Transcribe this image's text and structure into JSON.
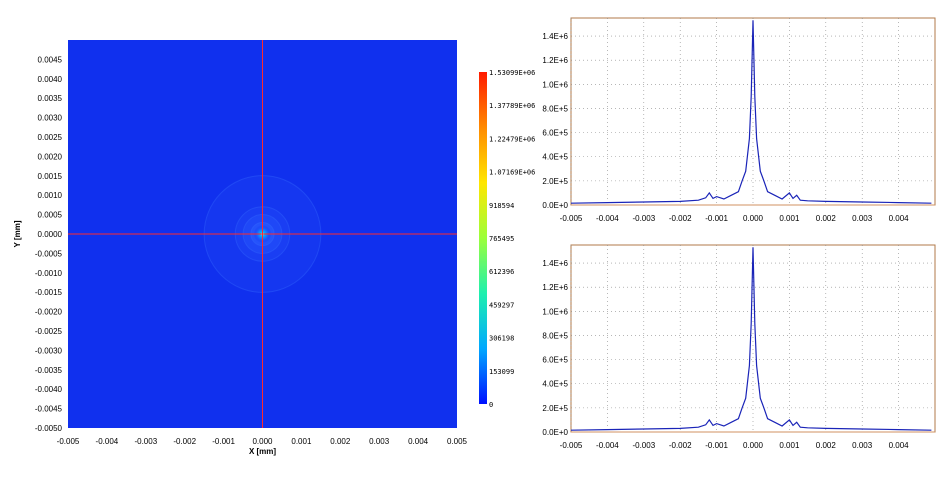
{
  "colors": {
    "map_background": "#1030ee",
    "crosshair": "#ff2a2a",
    "profile_line": "#1a24b8",
    "grid": "#8a8a8a",
    "plot_frame": "#b07a4a",
    "baseline": "#d09060"
  },
  "chart_data": [
    {
      "type": "heatmap",
      "xlabel": "X [mm]",
      "ylabel": "Y [mm]",
      "xlim": [
        -0.005,
        0.005
      ],
      "ylim": [
        -0.005,
        0.005
      ],
      "x_ticks": [
        "-0.005",
        "-0.004",
        "-0.003",
        "-0.002",
        "-0.001",
        "0.000",
        "0.001",
        "0.002",
        "0.003",
        "0.004",
        "0.005"
      ],
      "y_ticks": [
        "0.0045",
        "0.0040",
        "0.0035",
        "0.0030",
        "0.0025",
        "0.0020",
        "0.0015",
        "0.0010",
        "0.0005",
        "0.0000",
        "-0.0005",
        "-0.0010",
        "-0.0015",
        "-0.0020",
        "-0.0025",
        "-0.0030",
        "-0.0035",
        "-0.0040",
        "-0.0045",
        "-0.0050"
      ],
      "y_tick_values": [
        0.0045,
        0.004,
        0.0035,
        0.003,
        0.0025,
        0.002,
        0.0015,
        0.001,
        0.0005,
        0,
        -0.0005,
        -0.001,
        -0.0015,
        -0.002,
        -0.0025,
        -0.003,
        -0.0035,
        -0.004,
        -0.0045,
        -0.005
      ],
      "colorbar": {
        "range": [
          0,
          1530990
        ],
        "labels": [
          "1.53099E+06",
          "1.37789E+06",
          "1.22479E+06",
          "1.07169E+06",
          "918594",
          "765495",
          "612396",
          "459297",
          "306198",
          "153099",
          "0"
        ],
        "label_values": [
          1530990,
          1377890,
          1224790,
          1071690,
          918594,
          765495,
          612396,
          459297,
          306198,
          153099,
          0
        ],
        "colors": [
          "#ff1a00",
          "#ff8a00",
          "#ffe600",
          "#9cff3a",
          "#1ef0ae",
          "#00a8ff",
          "#0010ff"
        ]
      },
      "crosshair": {
        "x": 0.0,
        "y": 0.0
      },
      "rings_mm": [
        0.0003,
        0.0005,
        0.0007,
        0.0015
      ]
    },
    {
      "type": "line",
      "xlim": [
        -0.005,
        0.005
      ],
      "ylim": [
        0,
        1550000
      ],
      "x_ticks": [
        "-0.005",
        "-0.004",
        "-0.003",
        "-0.002",
        "-0.001",
        "0.000",
        "0.001",
        "0.002",
        "0.003",
        "0.004"
      ],
      "x_tick_values": [
        -0.005,
        -0.004,
        -0.003,
        -0.002,
        -0.001,
        0,
        0.001,
        0.002,
        0.003,
        0.004
      ],
      "y_ticks": [
        "0.0E+0",
        "2.0E+5",
        "4.0E+5",
        "6.0E+5",
        "8.0E+5",
        "1.0E+6",
        "1.2E+6",
        "1.4E+6"
      ],
      "y_tick_values": [
        0,
        200000,
        400000,
        600000,
        800000,
        1000000,
        1200000,
        1400000
      ],
      "series": [
        {
          "x": [
            -0.005,
            -0.004,
            -0.003,
            -0.002,
            -0.0015,
            -0.0013,
            -0.0012,
            -0.0011,
            -0.001,
            -0.0008,
            -0.0006,
            -0.0004,
            -0.0003,
            -0.0002,
            -0.0001,
            -5e-05,
            0.0,
            5e-05,
            0.0001,
            0.0002,
            0.0003,
            0.0004,
            0.0006,
            0.0008,
            0.001,
            0.0011,
            0.0012,
            0.0013,
            0.0015,
            0.002,
            0.003,
            0.004,
            0.0049
          ],
          "y": [
            15000,
            20000,
            25000,
            30000,
            40000,
            60000,
            100000,
            55000,
            70000,
            50000,
            80000,
            110000,
            200000,
            280000,
            550000,
            900000,
            1530990,
            900000,
            550000,
            280000,
            200000,
            110000,
            80000,
            50000,
            100000,
            55000,
            80000,
            40000,
            35000,
            30000,
            25000,
            20000,
            15000
          ]
        }
      ]
    },
    {
      "type": "line",
      "xlim": [
        -0.005,
        0.005
      ],
      "ylim": [
        0,
        1550000
      ],
      "x_ticks": [
        "-0.005",
        "-0.004",
        "-0.003",
        "-0.002",
        "-0.001",
        "0.000",
        "0.001",
        "0.002",
        "0.003",
        "0.004"
      ],
      "x_tick_values": [
        -0.005,
        -0.004,
        -0.003,
        -0.002,
        -0.001,
        0,
        0.001,
        0.002,
        0.003,
        0.004
      ],
      "y_ticks": [
        "0.0E+0",
        "2.0E+5",
        "4.0E+5",
        "6.0E+5",
        "8.0E+5",
        "1.0E+6",
        "1.2E+6",
        "1.4E+6"
      ],
      "y_tick_values": [
        0,
        200000,
        400000,
        600000,
        800000,
        1000000,
        1200000,
        1400000
      ],
      "series": [
        {
          "x": [
            -0.005,
            -0.004,
            -0.003,
            -0.002,
            -0.0015,
            -0.0013,
            -0.0012,
            -0.0011,
            -0.001,
            -0.0008,
            -0.0006,
            -0.0004,
            -0.0003,
            -0.0002,
            -0.0001,
            -5e-05,
            0.0,
            5e-05,
            0.0001,
            0.0002,
            0.0003,
            0.0004,
            0.0006,
            0.0008,
            0.001,
            0.0011,
            0.0012,
            0.0013,
            0.0015,
            0.002,
            0.003,
            0.004,
            0.0049
          ],
          "y": [
            15000,
            20000,
            25000,
            30000,
            40000,
            60000,
            100000,
            55000,
            70000,
            50000,
            80000,
            110000,
            200000,
            280000,
            550000,
            900000,
            1530990,
            900000,
            550000,
            280000,
            200000,
            110000,
            80000,
            50000,
            100000,
            55000,
            80000,
            40000,
            35000,
            30000,
            25000,
            20000,
            15000
          ]
        }
      ]
    }
  ]
}
